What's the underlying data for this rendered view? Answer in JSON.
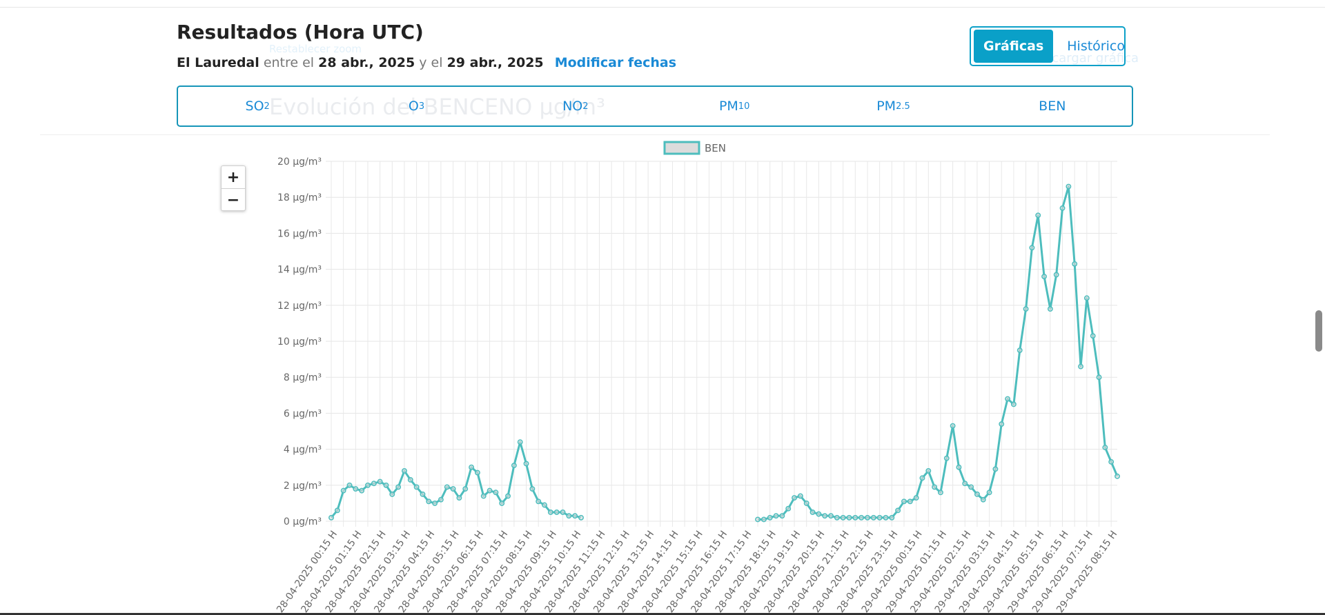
{
  "header": {
    "title": "Resultados (Hora UTC)",
    "station": "El Lauredal",
    "between": "entre el",
    "date_from": "28 abr., 2025",
    "and": "y el",
    "date_to": "29 abr., 2025",
    "modify_label": "Modificar fechas"
  },
  "view_toggle": {
    "graphs_label": "Gráficas",
    "history_label": "Histórico"
  },
  "pollutant_tabs": [
    {
      "base": "SO",
      "sub": "2"
    },
    {
      "base": "O",
      "sub": "3"
    },
    {
      "base": "NO",
      "sub": "2"
    },
    {
      "base": "PM",
      "sub": "10"
    },
    {
      "base": "PM",
      "sub": "2.5"
    },
    {
      "base": "BEN",
      "sub": ""
    }
  ],
  "background_text": {
    "chart_heading": "Evolución del BENCENO µg/m³",
    "reset": "Restablecer zoom",
    "download": "Descargar gráfica"
  },
  "zoom": {
    "in_label": "+",
    "out_label": "−"
  },
  "colors": {
    "accent": "#0aa0c8",
    "link": "#1a8ad6",
    "line": "#4dbdbd",
    "legend_fill": "#dcdcdc"
  },
  "chart_data": {
    "type": "line",
    "title": "",
    "legend": [
      "BEN"
    ],
    "legend_position": "top-center",
    "ylim": [
      0,
      20
    ],
    "yticks": [
      0,
      2,
      4,
      6,
      8,
      10,
      12,
      14,
      16,
      18,
      20
    ],
    "y_unit": " µg/m³",
    "grid": true,
    "x_tick_labels": [
      "28-04-2025 00:15 H",
      "28-04-2025 01:15 H",
      "28-04-2025 02:15 H",
      "28-04-2025 03:15 H",
      "28-04-2025 04:15 H",
      "28-04-2025 05:15 H",
      "28-04-2025 06:15 H",
      "28-04-2025 07:15 H",
      "28-04-2025 08:15 H",
      "28-04-2025 09:15 H",
      "28-04-2025 10:15 H",
      "28-04-2025 11:15 H",
      "28-04-2025 12:15 H",
      "28-04-2025 13:15 H",
      "28-04-2025 14:15 H",
      "28-04-2025 15:15 H",
      "28-04-2025 16:15 H",
      "28-04-2025 17:15 H",
      "28-04-2025 18:15 H",
      "28-04-2025 19:15 H",
      "28-04-2025 20:15 H",
      "28-04-2025 21:15 H",
      "28-04-2025 22:15 H",
      "28-04-2025 23:15 H",
      "29-04-2025 00:15 H",
      "29-04-2025 01:15 H",
      "29-04-2025 02:15 H",
      "29-04-2025 03:15 H",
      "29-04-2025 04:15 H",
      "29-04-2025 05:15 H",
      "29-04-2025 06:15 H",
      "29-04-2025 07:15 H",
      "29-04-2025 08:15 H"
    ],
    "points_per_label": 4,
    "series": [
      {
        "name": "BEN",
        "values": [
          0.2,
          0.6,
          1.7,
          2.0,
          1.8,
          1.7,
          2.0,
          2.1,
          2.2,
          2.0,
          1.5,
          1.9,
          2.8,
          2.3,
          1.9,
          1.5,
          1.1,
          1.0,
          1.2,
          1.9,
          1.8,
          1.3,
          1.8,
          3.0,
          2.7,
          1.4,
          1.7,
          1.6,
          1.0,
          1.4,
          3.1,
          4.4,
          3.2,
          1.8,
          1.1,
          0.9,
          0.5,
          0.5,
          0.5,
          0.3,
          0.3,
          0.2,
          null,
          null,
          null,
          null,
          null,
          null,
          null,
          null,
          null,
          null,
          null,
          null,
          null,
          null,
          null,
          null,
          null,
          null,
          null,
          null,
          null,
          null,
          null,
          null,
          null,
          null,
          null,
          null,
          0.1,
          0.1,
          0.2,
          0.3,
          0.3,
          0.7,
          1.3,
          1.4,
          1.0,
          0.5,
          0.4,
          0.3,
          0.3,
          0.2,
          0.2,
          0.2,
          0.2,
          0.2,
          0.2,
          0.2,
          0.2,
          0.2,
          0.2,
          0.6,
          1.1,
          1.1,
          1.3,
          2.4,
          2.8,
          1.9,
          1.6,
          3.5,
          5.3,
          3.0,
          2.1,
          1.9,
          1.5,
          1.2,
          1.6,
          2.9,
          5.4,
          6.8,
          6.5,
          9.5,
          11.8,
          15.2,
          17.0,
          13.6,
          11.8,
          13.7,
          17.4,
          18.6,
          14.3,
          8.6,
          12.4,
          10.3,
          8.0,
          4.1,
          3.3,
          2.5
        ]
      }
    ]
  }
}
